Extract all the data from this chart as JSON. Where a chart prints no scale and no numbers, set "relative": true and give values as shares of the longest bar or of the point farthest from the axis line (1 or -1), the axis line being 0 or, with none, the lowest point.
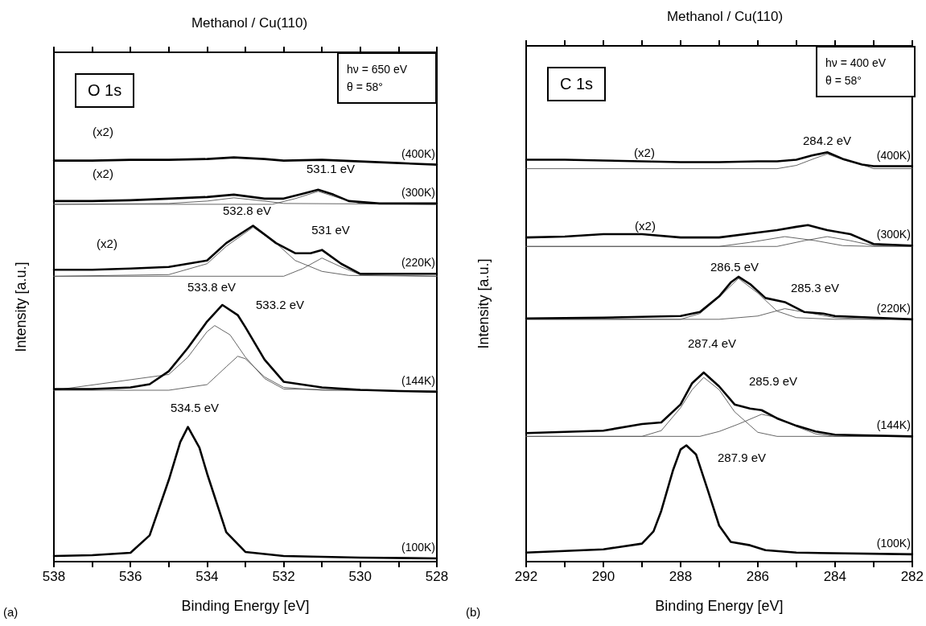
{
  "chart_data": [
    {
      "type": "line",
      "title": "Methanol / Cu(110)",
      "xlabel": "Binding Energy [eV]",
      "ylabel": "Intensity [a.u.]",
      "relative": true,
      "legend": false,
      "grid": false,
      "marker": "none",
      "xlim": [
        538,
        528
      ],
      "xticks": [
        538,
        {
          "value": 537,
          "label": null
        },
        536,
        {
          "value": 535,
          "label": null
        },
        534,
        {
          "value": 533,
          "label": null
        },
        532,
        {
          "value": 531,
          "label": null
        },
        530,
        {
          "value": 529,
          "label": null
        },
        528
      ],
      "annotations": [
        "O 1s",
        "hν = 650 eV",
        "θ = 58°",
        "(a)",
        "(x2)",
        "(x2)",
        "(x2)",
        "531.1 eV",
        "532.8 eV",
        "531 eV",
        "533.8 eV",
        "533.2 eV",
        "534.5 eV"
      ],
      "series": [
        {
          "name": "(400K)",
          "color": "#000000",
          "x": [
            538,
            537,
            536,
            535,
            534,
            533.3,
            532.5,
            532,
            531,
            530,
            529,
            528
          ],
          "values": [
            0.992,
            0.992,
            0.994,
            0.994,
            0.996,
            1.0,
            0.996,
            0.992,
            0.994,
            0.99,
            0.986,
            0.982
          ]
        },
        {
          "color": "#555555",
          "x": [
            538,
            535,
            534,
            533.3,
            532.5,
            532,
            528
          ],
          "values": [
            0.884,
            0.886,
            0.892,
            0.9,
            0.892,
            0.886,
            0.884
          ]
        },
        {
          "color": "#555555",
          "x": [
            538,
            532.3,
            531.7,
            531.1,
            530.5,
            530,
            528
          ],
          "values": [
            0.884,
            0.884,
            0.898,
            0.916,
            0.898,
            0.886,
            0.884
          ]
        },
        {
          "name": "(300K)",
          "color": "#000000",
          "x": [
            538,
            537,
            536,
            535,
            534,
            533.3,
            532.5,
            532,
            531.5,
            531.1,
            530.7,
            530.3,
            529.5,
            528
          ],
          "values": [
            0.892,
            0.892,
            0.894,
            0.898,
            0.902,
            0.908,
            0.898,
            0.898,
            0.91,
            0.92,
            0.908,
            0.892,
            0.886,
            0.886
          ]
        },
        {
          "color": "#555555",
          "x": [
            538,
            535,
            534,
            533.5,
            532.8,
            532.2,
            531.7,
            531,
            530.3,
            528
          ],
          "values": [
            0.706,
            0.71,
            0.737,
            0.78,
            0.827,
            0.788,
            0.745,
            0.718,
            0.708,
            0.706
          ]
        },
        {
          "color": "#555555",
          "x": [
            538,
            532,
            531.5,
            531,
            530.5,
            530,
            528
          ],
          "values": [
            0.706,
            0.706,
            0.725,
            0.751,
            0.729,
            0.71,
            0.706
          ]
        },
        {
          "name": "(220K)",
          "color": "#000000",
          "x": [
            538,
            537,
            536,
            535,
            534,
            533.5,
            532.8,
            532.2,
            531.7,
            531.3,
            531,
            530.5,
            530,
            529,
            528
          ],
          "values": [
            0.722,
            0.722,
            0.725,
            0.729,
            0.745,
            0.788,
            0.831,
            0.788,
            0.763,
            0.763,
            0.771,
            0.737,
            0.712,
            0.712,
            0.712
          ]
        },
        {
          "color": "#555555",
          "x": [
            538,
            535,
            534.5,
            534,
            533.8,
            533.4,
            533,
            532.5,
            532,
            528
          ],
          "values": [
            0.424,
            0.463,
            0.506,
            0.569,
            0.584,
            0.561,
            0.506,
            0.453,
            0.427,
            0.422
          ]
        },
        {
          "color": "#555555",
          "x": [
            538,
            535,
            534,
            533.5,
            533.2,
            533,
            532.5,
            532,
            531,
            528
          ],
          "values": [
            0.424,
            0.424,
            0.438,
            0.482,
            0.508,
            0.502,
            0.457,
            0.431,
            0.424,
            0.422
          ]
        },
        {
          "name": "(144K)",
          "color": "#000000",
          "x": [
            538,
            537,
            536,
            535.5,
            535,
            534.5,
            534,
            533.6,
            533.2,
            533,
            532.5,
            532,
            531,
            530,
            529,
            528
          ],
          "values": [
            0.427,
            0.427,
            0.431,
            0.439,
            0.471,
            0.529,
            0.594,
            0.635,
            0.61,
            0.58,
            0.5,
            0.445,
            0.431,
            0.425,
            0.422,
            0.42
          ]
        },
        {
          "name": "(100K)",
          "color": "#000000",
          "x": [
            538,
            537,
            536,
            535.5,
            535,
            534.7,
            534.5,
            534.2,
            534,
            533.5,
            533,
            532,
            530,
            528
          ],
          "values": [
            0.014,
            0.016,
            0.022,
            0.065,
            0.202,
            0.296,
            0.333,
            0.282,
            0.218,
            0.073,
            0.024,
            0.014,
            0.01,
            0.008
          ]
        }
      ]
    },
    {
      "type": "line",
      "title": "Methanol / Cu(110)",
      "xlabel": "Binding Energy [eV]",
      "ylabel": "Intensity [a.u.]",
      "relative": true,
      "legend": false,
      "grid": false,
      "marker": "none",
      "xlim": [
        292,
        282
      ],
      "xticks": [
        292,
        {
          "value": 291,
          "label": null
        },
        290,
        {
          "value": 289,
          "label": null
        },
        288,
        {
          "value": 287,
          "label": null
        },
        286,
        {
          "value": 285,
          "label": null
        },
        284,
        {
          "value": 283,
          "label": null
        },
        282
      ],
      "annotations": [
        "C 1s",
        "hν = 400 eV",
        "θ = 58°",
        "(b)",
        "284.2 eV",
        "(x2)",
        "(x2)",
        "286.5 eV",
        "285.3 eV",
        "287.4 eV",
        "285.9 eV",
        "287.9 eV"
      ],
      "series": [
        {
          "color": "#555555",
          "x": [
            292,
            285.5,
            285,
            284.5,
            284.2,
            283.8,
            283.3,
            283,
            282
          ],
          "values": [
            0.96,
            0.96,
            0.968,
            0.986,
            0.996,
            0.982,
            0.97,
            0.96,
            0.96
          ]
        },
        {
          "name": "(400K)",
          "color": "#000000",
          "x": [
            292,
            291,
            290,
            289,
            288,
            287,
            286,
            285.5,
            285,
            284.6,
            284.2,
            283.8,
            283.3,
            283,
            282
          ],
          "values": [
            0.982,
            0.982,
            0.98,
            0.978,
            0.976,
            0.976,
            0.978,
            0.978,
            0.982,
            0.992,
            1.0,
            0.984,
            0.97,
            0.966,
            0.966
          ]
        },
        {
          "color": "#555555",
          "x": [
            292,
            287,
            286.2,
            285.3,
            284.5,
            283.8,
            283,
            282
          ],
          "values": [
            0.77,
            0.77,
            0.78,
            0.794,
            0.784,
            0.772,
            0.77,
            0.77
          ]
        },
        {
          "color": "#555555",
          "x": [
            292,
            285.5,
            284.8,
            284.2,
            283.6,
            283,
            282
          ],
          "values": [
            0.77,
            0.77,
            0.784,
            0.794,
            0.784,
            0.772,
            0.77
          ]
        },
        {
          "name": "(300K)",
          "color": "#000000",
          "x": [
            292,
            291,
            290,
            289,
            288,
            287,
            286,
            285.5,
            285,
            284.7,
            284.2,
            283.6,
            283.3,
            283,
            282
          ],
          "values": [
            0.792,
            0.794,
            0.8,
            0.8,
            0.792,
            0.792,
            0.804,
            0.81,
            0.818,
            0.822,
            0.81,
            0.8,
            0.788,
            0.776,
            0.772
          ]
        },
        {
          "color": "#555555",
          "x": [
            292,
            288,
            287.5,
            287,
            286.5,
            286,
            285.5,
            285,
            284,
            282
          ],
          "values": [
            0.592,
            0.592,
            0.606,
            0.646,
            0.692,
            0.656,
            0.612,
            0.596,
            0.592,
            0.592
          ]
        },
        {
          "color": "#555555",
          "x": [
            292,
            287,
            286,
            285.3,
            284.7,
            284,
            283,
            282
          ],
          "values": [
            0.592,
            0.592,
            0.6,
            0.618,
            0.608,
            0.596,
            0.592,
            0.592
          ]
        },
        {
          "name": "(220K)",
          "color": "#000000",
          "x": [
            292,
            290,
            288,
            287.5,
            287,
            286.7,
            286.5,
            286.2,
            285.8,
            285.3,
            284.8,
            284.3,
            284,
            283,
            282
          ],
          "values": [
            0.594,
            0.596,
            0.6,
            0.61,
            0.648,
            0.682,
            0.696,
            0.678,
            0.644,
            0.634,
            0.61,
            0.606,
            0.6,
            0.596,
            0.592
          ]
        },
        {
          "color": "#555555",
          "x": [
            292,
            289,
            288.5,
            288,
            287.7,
            287.4,
            287,
            286.6,
            286,
            285.5,
            282
          ],
          "values": [
            0.306,
            0.306,
            0.32,
            0.376,
            0.42,
            0.45,
            0.42,
            0.366,
            0.316,
            0.306,
            0.306
          ]
        },
        {
          "color": "#555555",
          "x": [
            292,
            287.5,
            287,
            286.5,
            285.9,
            285.5,
            285,
            284.5,
            284,
            282
          ],
          "values": [
            0.306,
            0.306,
            0.318,
            0.336,
            0.36,
            0.352,
            0.33,
            0.312,
            0.306,
            0.306
          ]
        },
        {
          "name": "(144K)",
          "color": "#000000",
          "x": [
            292,
            290,
            289,
            288.5,
            288,
            287.7,
            287.4,
            287,
            286.6,
            286.2,
            285.9,
            285.5,
            285,
            284.5,
            284,
            282
          ],
          "values": [
            0.314,
            0.32,
            0.336,
            0.34,
            0.384,
            0.436,
            0.462,
            0.428,
            0.384,
            0.374,
            0.37,
            0.35,
            0.332,
            0.318,
            0.31,
            0.306
          ]
        },
        {
          "name": "(100K)",
          "color": "#000000",
          "x": [
            292,
            290,
            289,
            288.7,
            288.5,
            288.2,
            288,
            287.85,
            287.6,
            287.3,
            287,
            286.7,
            286.2,
            285.8,
            285,
            282
          ],
          "values": [
            0.022,
            0.03,
            0.044,
            0.074,
            0.124,
            0.222,
            0.274,
            0.284,
            0.262,
            0.176,
            0.088,
            0.048,
            0.04,
            0.028,
            0.022,
            0.018
          ]
        }
      ]
    }
  ]
}
